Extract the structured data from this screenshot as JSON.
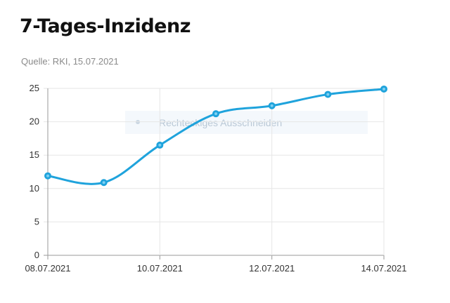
{
  "title": "7-Tages-Inzidenz",
  "subtitle": "Quelle: RKI, 15.07.2021",
  "overlay": {
    "label": "Rechteckiges Ausschneiden"
  },
  "colors": {
    "line": "#1fa3dc",
    "grid": "#e6e6e6",
    "axis": "#999999"
  },
  "chart_data": {
    "type": "line",
    "title": "7-Tages-Inzidenz",
    "x": [
      "08.07.2021",
      "09.07.2021",
      "10.07.2021",
      "11.07.2021",
      "12.07.2021",
      "13.07.2021",
      "14.07.2021"
    ],
    "x_tick_labels": [
      "08.07.2021",
      "10.07.2021",
      "12.07.2021",
      "14.07.2021"
    ],
    "series": [
      {
        "values": [
          11.9,
          10.9,
          16.5,
          21.2,
          22.4,
          24.1,
          24.9
        ]
      }
    ],
    "y_ticks": [
      0,
      5,
      10,
      15,
      20,
      25
    ],
    "ylim": [
      0,
      25
    ],
    "xlabel": "",
    "ylabel": "",
    "grid": true,
    "legend": "none"
  }
}
